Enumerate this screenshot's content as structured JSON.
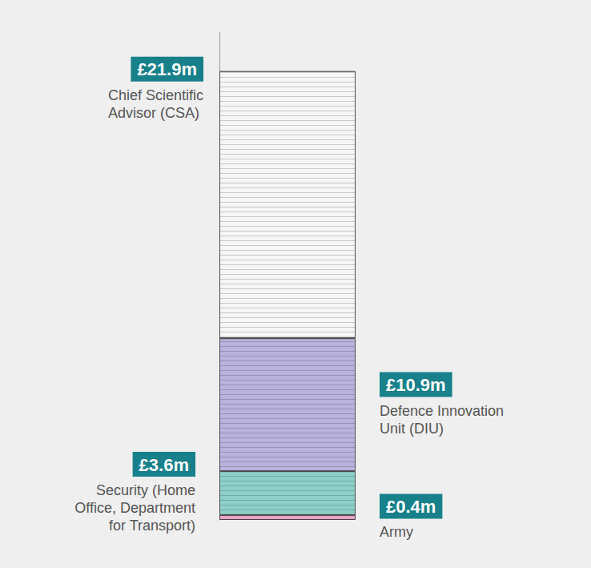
{
  "chart_data": {
    "type": "bar",
    "stacked": true,
    "data_labels": true,
    "tick_labels": false,
    "categories": [
      null
    ],
    "ylim": [
      0,
      40
    ],
    "series": [
      {
        "name": "Army",
        "color": "#e9a3c6",
        "values": [
          0.4
        ],
        "value_labels": [
          "£0.4m"
        ]
      },
      {
        "name": "Security (Home Office, Department for Transport)",
        "color": "#8ecfc9",
        "values": [
          3.6
        ],
        "value_labels": [
          "£3.6m"
        ]
      },
      {
        "name": "Defence Innovation Unit (DIU)",
        "color": "#bab3dd",
        "values": [
          10.9
        ],
        "value_labels": [
          "£10.9m"
        ]
      },
      {
        "name": "Chief Scientific Advisor (CSA)",
        "color": "#f6f6f6",
        "values": [
          21.9
        ],
        "value_labels": [
          "£21.9m"
        ]
      }
    ]
  }
}
